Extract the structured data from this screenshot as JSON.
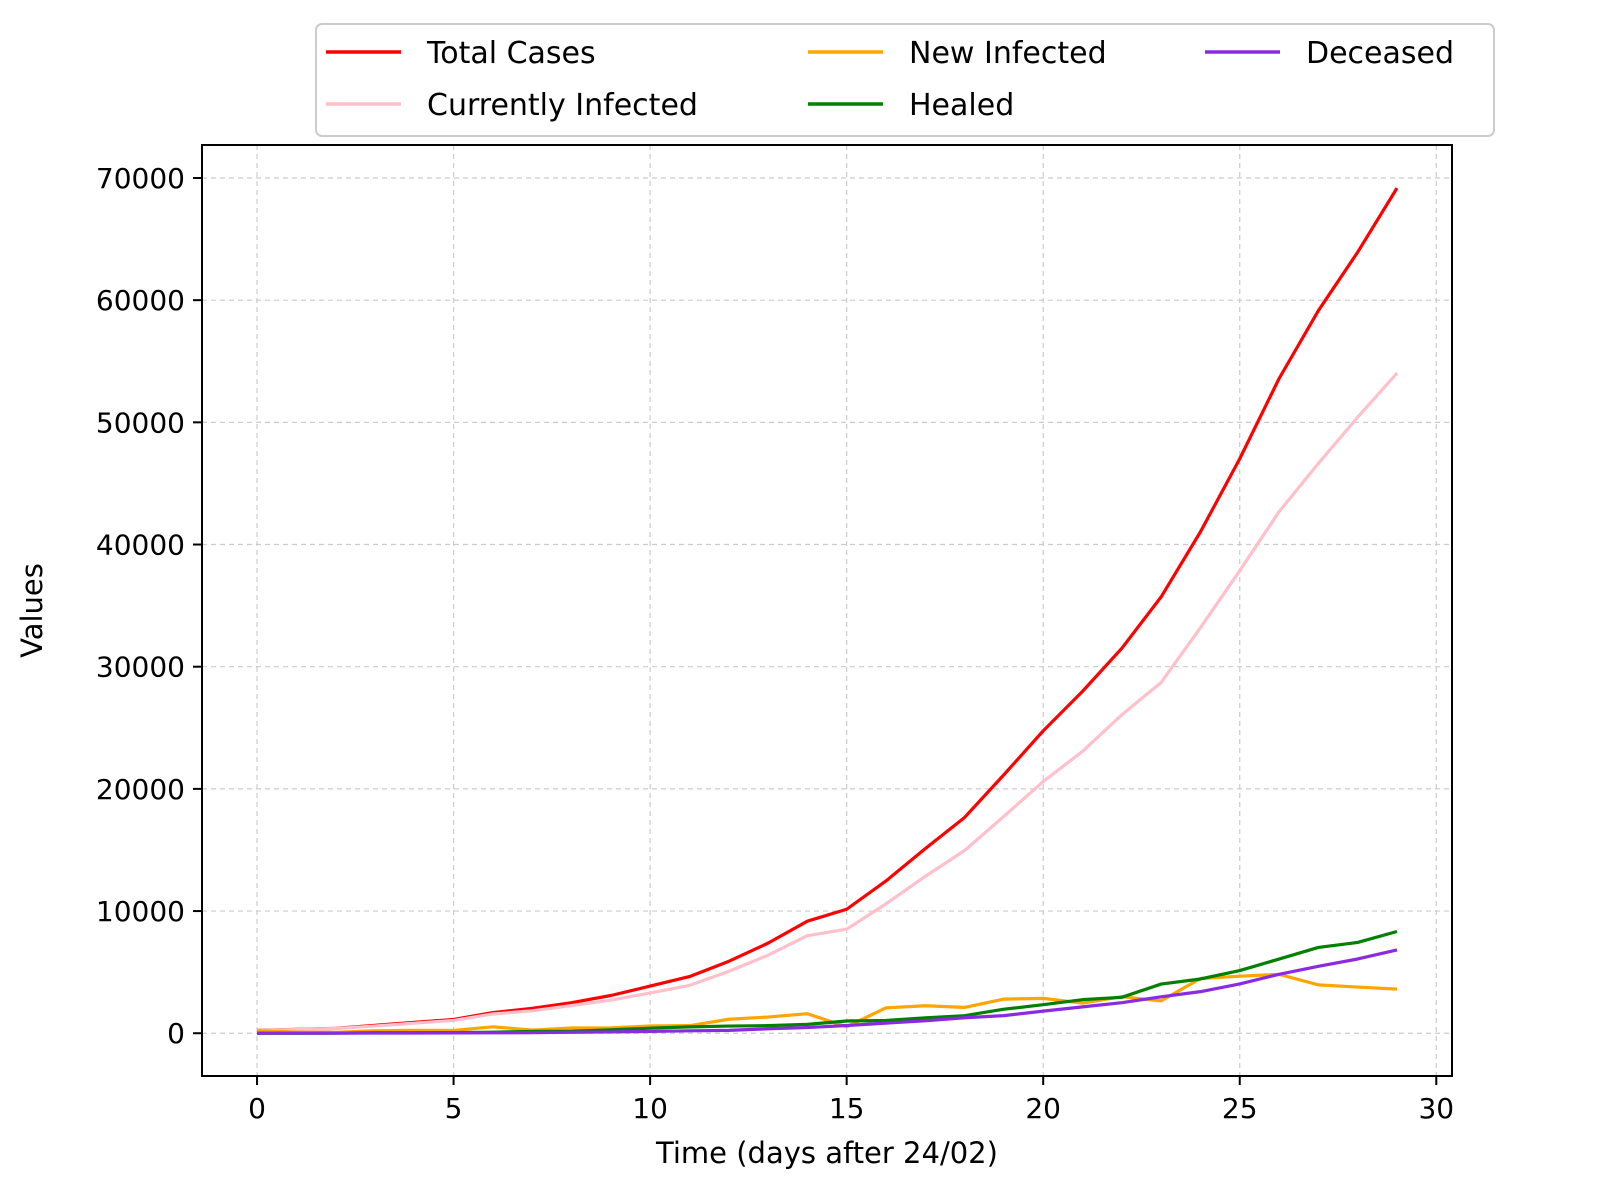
{
  "chart_data": {
    "type": "line",
    "xlabel": "Time (days after 24/02)",
    "ylabel": "Values",
    "xlim": [
      -1.4,
      30.4
    ],
    "ylim": [
      -3500,
      72700
    ],
    "xticks": [
      0,
      5,
      10,
      15,
      20,
      25,
      30
    ],
    "yticks": [
      0,
      10000,
      20000,
      30000,
      40000,
      50000,
      60000,
      70000
    ],
    "grid": true,
    "legend_position": "top-center (outside, above plot)",
    "x": [
      0,
      1,
      2,
      3,
      4,
      5,
      6,
      7,
      8,
      9,
      10,
      11,
      12,
      13,
      14,
      15,
      16,
      17,
      18,
      19,
      20,
      21,
      22,
      23,
      24,
      25,
      26,
      27,
      28,
      29
    ],
    "series": [
      {
        "name": "Total Cases",
        "color": "#ff0000",
        "values": [
          229,
          322,
          400,
          650,
          888,
          1128,
          1694,
          2036,
          2502,
          3089,
          3858,
          4636,
          5883,
          7375,
          9172,
          10149,
          12462,
          15113,
          17660,
          21157,
          24747,
          27980,
          31506,
          35713,
          41035,
          47021,
          53578,
          59138,
          63927,
          69176
        ]
      },
      {
        "name": "Currently Infected",
        "color": "#ffc0cb",
        "values": [
          221,
          311,
          385,
          588,
          821,
          1049,
          1577,
          1835,
          2263,
          2706,
          3296,
          3916,
          5061,
          6387,
          7985,
          8514,
          10590,
          12839,
          14955,
          17750,
          20603,
          23073,
          26062,
          28710,
          33190,
          37860,
          42681,
          46638,
          50418,
          54030
        ]
      },
      {
        "name": "New Infected",
        "color": "#ffa500",
        "values": [
          221,
          90,
          74,
          203,
          233,
          228,
          528,
          258,
          428,
          443,
          590,
          620,
          1145,
          1326,
          1598,
          529,
          2076,
          2249,
          2116,
          2795,
          2853,
          2470,
          2989,
          2648,
          4480,
          4670,
          4821,
          3957,
          3780,
          3612
        ]
      },
      {
        "name": "Healed",
        "color": "#008000",
        "values": [
          1,
          1,
          3,
          45,
          46,
          50,
          83,
          149,
          160,
          276,
          414,
          523,
          589,
          622,
          724,
          1004,
          1045,
          1258,
          1439,
          1966,
          2335,
          2749,
          2941,
          4025,
          4440,
          5129,
          6072,
          7024,
          7432,
          8326
        ]
      },
      {
        "name": "Deceased",
        "color": "#8a2be2",
        "values": [
          7,
          10,
          12,
          17,
          21,
          29,
          34,
          52,
          79,
          107,
          148,
          197,
          233,
          366,
          463,
          631,
          827,
          1016,
          1266,
          1441,
          1809,
          2158,
          2503,
          2978,
          3405,
          4032,
          4825,
          5476,
          6077,
          6820
        ]
      }
    ]
  }
}
